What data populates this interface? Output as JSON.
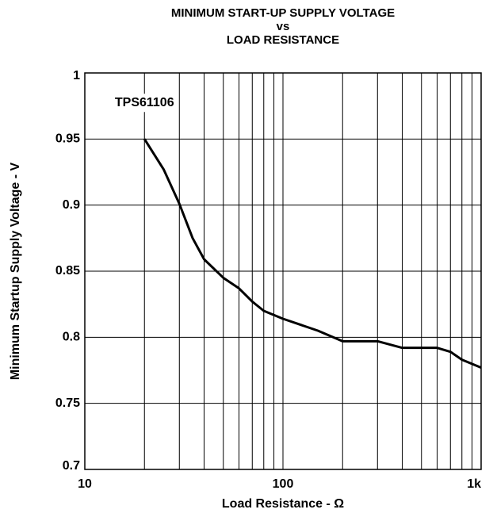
{
  "chart_data": {
    "type": "line",
    "title": [
      "MINIMUM START-UP SUPPLY VOLTAGE",
      "vs",
      "LOAD RESISTANCE"
    ],
    "x_label": "Load Resistance - Ω",
    "y_label": "Minimum Startup Supply Voltage - V",
    "annotation": "TPS61106",
    "x_scale": "log",
    "grid": true,
    "xlim": [
      10,
      1000
    ],
    "xticks": [
      10,
      100,
      {
        "value": 1000,
        "label": "1k"
      }
    ],
    "ylim": [
      0.7,
      1
    ],
    "yticks": [
      0.7,
      0.75,
      0.8,
      0.85,
      0.9,
      0.95,
      1
    ],
    "x": [
      20,
      25,
      30,
      35,
      40,
      50,
      60,
      70,
      80,
      100,
      150,
      200,
      300,
      400,
      600,
      700,
      800,
      1000
    ],
    "series": [
      {
        "name": "TPS61106",
        "color": "#000000",
        "values": [
          0.95,
          0.927,
          0.901,
          0.875,
          0.859,
          0.845,
          0.837,
          0.827,
          0.82,
          0.814,
          0.805,
          0.797,
          0.797,
          0.792,
          0.792,
          0.789,
          0.783,
          0.777
        ]
      }
    ]
  }
}
